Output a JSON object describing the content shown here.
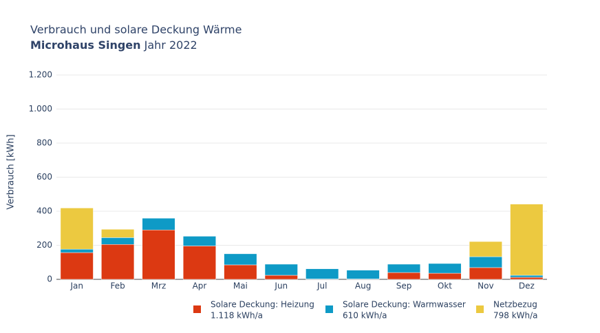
{
  "chart_data": {
    "type": "stacked_bar",
    "title": "Verbrauch und solare Deckung Wärme",
    "subtitle_bold": "Microhaus Singen",
    "subtitle": "Jahr 2022",
    "y_label": "Verbrauch [kWh]",
    "categories": [
      "Jan",
      "Feb",
      "Mrz",
      "Apr",
      "Mai",
      "Jun",
      "Jul",
      "Aug",
      "Sep",
      "Okt",
      "Nov",
      "Dez"
    ],
    "series": [
      {
        "name": "Solare Deckung: Heizung",
        "legend_note": "1.118 kWh/a",
        "color": "#dc3912",
        "values": [
          157,
          205,
          290,
          196,
          85,
          24,
          2,
          2,
          40,
          36,
          69,
          12
        ]
      },
      {
        "name": "Solare Deckung: Warmwasser",
        "legend_note": "610 kWh/a",
        "color": "#0e9ac6",
        "values": [
          20,
          40,
          69,
          57,
          65,
          65,
          60,
          52,
          49,
          57,
          64,
          12
        ]
      },
      {
        "name": "Netzbezug",
        "legend_note": "798 kWh/a",
        "color": "#ecc940",
        "values": [
          242,
          49,
          0,
          0,
          0,
          0,
          0,
          0,
          0,
          0,
          89,
          418
        ]
      }
    ],
    "ylim": [
      0,
      1200
    ],
    "yticks": [
      0,
      200,
      400,
      600,
      800,
      {
        "value": 1000,
        "label": "1.000"
      },
      {
        "value": 1200,
        "label": "1.200"
      }
    ],
    "grid": true
  }
}
